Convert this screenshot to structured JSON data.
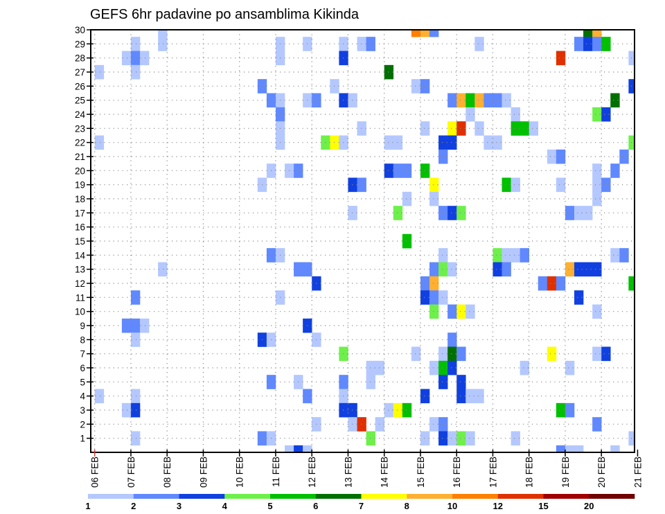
{
  "chart_data": {
    "type": "heatmap",
    "title": "GEFS 6hr padavine po ansamblima Kikinda",
    "xlabel": "",
    "ylabel": "",
    "x_ticks": [
      "06 FEB",
      "07 FEB",
      "08 FEB",
      "09 FEB",
      "10 FEB",
      "11 FEB",
      "12 FEB",
      "13 FEB",
      "14 FEB",
      "15 FEB",
      "16 FEB",
      "17 FEB",
      "18 FEB",
      "19 FEB",
      "20 FEB",
      "21 FEB"
    ],
    "x_step_hours": 6,
    "y_ticks": [
      "1",
      "2",
      "3",
      "4",
      "5",
      "6",
      "7",
      "8",
      "9",
      "10",
      "11",
      "12",
      "13",
      "14",
      "15",
      "16",
      "17",
      "18",
      "19",
      "20",
      "21",
      "22",
      "23",
      "24",
      "25",
      "26",
      "27",
      "28",
      "29",
      "30"
    ],
    "ylim": [
      0,
      30
    ],
    "grid": true,
    "colorbar": {
      "labels": [
        "1",
        "2",
        "3",
        "4",
        "5",
        "6",
        "7",
        "8",
        "10",
        "12",
        "15",
        "20"
      ],
      "colors": [
        "#b4c8ff",
        "#6088ff",
        "#1040e0",
        "#6ef04a",
        "#00c000",
        "#007000",
        "#ffff00",
        "#ffb030",
        "#ff8000",
        "#e03000",
        "#a00000",
        "#700000"
      ],
      "placement": "bottom"
    },
    "cells_format": "[member, 6h step since 06 FEB 00Z, color class index]",
    "cells": [
      [
        30,
        7,
        0
      ],
      [
        30,
        35,
        8
      ],
      [
        30,
        36,
        7
      ],
      [
        30,
        37,
        1
      ],
      [
        30,
        54,
        5
      ],
      [
        30,
        55,
        7
      ],
      [
        29,
        4,
        0
      ],
      [
        29,
        7,
        0
      ],
      [
        29,
        20,
        0
      ],
      [
        29,
        23,
        0
      ],
      [
        29,
        27,
        0
      ],
      [
        29,
        29,
        0
      ],
      [
        29,
        30,
        1
      ],
      [
        29,
        42,
        0
      ],
      [
        29,
        53,
        1
      ],
      [
        29,
        54,
        2
      ],
      [
        29,
        55,
        1
      ],
      [
        29,
        56,
        4
      ],
      [
        28,
        3,
        0
      ],
      [
        28,
        4,
        1
      ],
      [
        28,
        5,
        0
      ],
      [
        28,
        20,
        0
      ],
      [
        28,
        27,
        2
      ],
      [
        28,
        51,
        9
      ],
      [
        28,
        59,
        0
      ],
      [
        27,
        0,
        0
      ],
      [
        27,
        4,
        0
      ],
      [
        27,
        32,
        5
      ],
      [
        26,
        18,
        1
      ],
      [
        26,
        26,
        0
      ],
      [
        26,
        35,
        0
      ],
      [
        26,
        36,
        1
      ],
      [
        26,
        59,
        2
      ],
      [
        25,
        19,
        1
      ],
      [
        25,
        20,
        0
      ],
      [
        25,
        23,
        0
      ],
      [
        25,
        24,
        1
      ],
      [
        25,
        27,
        2
      ],
      [
        25,
        28,
        0
      ],
      [
        25,
        39,
        1
      ],
      [
        25,
        40,
        7
      ],
      [
        25,
        41,
        4
      ],
      [
        25,
        42,
        7
      ],
      [
        25,
        43,
        1
      ],
      [
        25,
        44,
        1
      ],
      [
        25,
        45,
        0
      ],
      [
        25,
        57,
        5
      ],
      [
        24,
        20,
        1
      ],
      [
        24,
        41,
        0
      ],
      [
        24,
        46,
        0
      ],
      [
        24,
        55,
        3
      ],
      [
        24,
        56,
        2
      ],
      [
        23,
        20,
        0
      ],
      [
        23,
        29,
        0
      ],
      [
        23,
        36,
        0
      ],
      [
        23,
        39,
        6
      ],
      [
        23,
        40,
        9
      ],
      [
        23,
        42,
        0
      ],
      [
        23,
        46,
        4
      ],
      [
        23,
        47,
        4
      ],
      [
        23,
        48,
        0
      ],
      [
        22,
        0,
        0
      ],
      [
        22,
        20,
        0
      ],
      [
        22,
        25,
        3
      ],
      [
        22,
        26,
        6
      ],
      [
        22,
        27,
        0
      ],
      [
        22,
        32,
        0
      ],
      [
        22,
        33,
        0
      ],
      [
        22,
        38,
        2
      ],
      [
        22,
        39,
        2
      ],
      [
        22,
        43,
        0
      ],
      [
        22,
        44,
        0
      ],
      [
        22,
        59,
        3
      ],
      [
        21,
        38,
        1
      ],
      [
        21,
        50,
        0
      ],
      [
        21,
        51,
        1
      ],
      [
        21,
        58,
        1
      ],
      [
        20,
        19,
        0
      ],
      [
        20,
        21,
        0
      ],
      [
        20,
        22,
        1
      ],
      [
        20,
        32,
        2
      ],
      [
        20,
        33,
        1
      ],
      [
        20,
        34,
        1
      ],
      [
        20,
        36,
        4
      ],
      [
        20,
        55,
        0
      ],
      [
        20,
        57,
        1
      ],
      [
        19,
        18,
        0
      ],
      [
        19,
        28,
        2
      ],
      [
        19,
        29,
        1
      ],
      [
        19,
        37,
        6
      ],
      [
        19,
        45,
        4
      ],
      [
        19,
        46,
        0
      ],
      [
        19,
        51,
        0
      ],
      [
        19,
        55,
        0
      ],
      [
        19,
        56,
        1
      ],
      [
        18,
        34,
        0
      ],
      [
        18,
        37,
        0
      ],
      [
        18,
        55,
        0
      ],
      [
        17,
        28,
        0
      ],
      [
        17,
        33,
        3
      ],
      [
        17,
        38,
        1
      ],
      [
        17,
        39,
        2
      ],
      [
        17,
        40,
        3
      ],
      [
        17,
        52,
        1
      ],
      [
        17,
        53,
        0
      ],
      [
        17,
        54,
        0
      ],
      [
        15,
        34,
        4
      ],
      [
        14,
        19,
        1
      ],
      [
        14,
        20,
        0
      ],
      [
        14,
        38,
        0
      ],
      [
        14,
        44,
        3
      ],
      [
        14,
        45,
        0
      ],
      [
        14,
        46,
        0
      ],
      [
        14,
        47,
        1
      ],
      [
        14,
        57,
        0
      ],
      [
        14,
        58,
        1
      ],
      [
        13,
        7,
        0
      ],
      [
        13,
        22,
        1
      ],
      [
        13,
        23,
        1
      ],
      [
        13,
        37,
        1
      ],
      [
        13,
        38,
        3
      ],
      [
        13,
        39,
        0
      ],
      [
        13,
        44,
        2
      ],
      [
        13,
        45,
        1
      ],
      [
        13,
        52,
        7
      ],
      [
        13,
        53,
        2
      ],
      [
        13,
        54,
        2
      ],
      [
        13,
        55,
        2
      ],
      [
        12,
        24,
        2
      ],
      [
        12,
        36,
        1
      ],
      [
        12,
        37,
        7
      ],
      [
        12,
        49,
        1
      ],
      [
        12,
        50,
        9
      ],
      [
        12,
        51,
        1
      ],
      [
        12,
        59,
        4
      ],
      [
        11,
        4,
        1
      ],
      [
        11,
        20,
        0
      ],
      [
        11,
        36,
        2
      ],
      [
        11,
        37,
        1
      ],
      [
        11,
        38,
        0
      ],
      [
        11,
        53,
        2
      ],
      [
        10,
        37,
        3
      ],
      [
        10,
        39,
        1
      ],
      [
        10,
        40,
        6
      ],
      [
        10,
        41,
        0
      ],
      [
        10,
        55,
        0
      ],
      [
        9,
        3,
        1
      ],
      [
        9,
        4,
        1
      ],
      [
        9,
        5,
        0
      ],
      [
        9,
        23,
        2
      ],
      [
        8,
        4,
        0
      ],
      [
        8,
        18,
        2
      ],
      [
        8,
        19,
        0
      ],
      [
        8,
        24,
        0
      ],
      [
        8,
        39,
        1
      ],
      [
        7,
        27,
        3
      ],
      [
        7,
        35,
        0
      ],
      [
        7,
        38,
        0
      ],
      [
        7,
        39,
        5
      ],
      [
        7,
        40,
        1
      ],
      [
        7,
        50,
        6
      ],
      [
        7,
        55,
        0
      ],
      [
        7,
        56,
        2
      ],
      [
        6,
        30,
        0
      ],
      [
        6,
        31,
        0
      ],
      [
        6,
        37,
        0
      ],
      [
        6,
        38,
        4
      ],
      [
        6,
        39,
        2
      ],
      [
        6,
        47,
        0
      ],
      [
        6,
        52,
        0
      ],
      [
        5,
        19,
        1
      ],
      [
        5,
        22,
        0
      ],
      [
        5,
        27,
        1
      ],
      [
        5,
        30,
        0
      ],
      [
        5,
        38,
        2
      ],
      [
        5,
        40,
        2
      ],
      [
        4,
        0,
        0
      ],
      [
        4,
        4,
        0
      ],
      [
        4,
        23,
        1
      ],
      [
        4,
        27,
        0
      ],
      [
        4,
        36,
        2
      ],
      [
        4,
        40,
        2
      ],
      [
        4,
        41,
        0
      ],
      [
        4,
        42,
        0
      ],
      [
        3,
        3,
        0
      ],
      [
        3,
        4,
        2
      ],
      [
        3,
        27,
        2
      ],
      [
        3,
        28,
        2
      ],
      [
        3,
        32,
        0
      ],
      [
        3,
        33,
        6
      ],
      [
        3,
        34,
        4
      ],
      [
        3,
        51,
        4
      ],
      [
        3,
        52,
        1
      ],
      [
        2,
        24,
        0
      ],
      [
        2,
        28,
        0
      ],
      [
        2,
        29,
        9
      ],
      [
        2,
        31,
        0
      ],
      [
        2,
        37,
        0
      ],
      [
        2,
        38,
        1
      ],
      [
        2,
        55,
        1
      ],
      [
        1,
        4,
        0
      ],
      [
        1,
        18,
        1
      ],
      [
        1,
        19,
        0
      ],
      [
        1,
        30,
        3
      ],
      [
        1,
        36,
        0
      ],
      [
        1,
        38,
        2
      ],
      [
        1,
        39,
        0
      ],
      [
        1,
        40,
        3
      ],
      [
        1,
        41,
        0
      ],
      [
        1,
        46,
        0
      ],
      [
        1,
        59,
        0
      ],
      [
        0,
        21,
        0
      ],
      [
        0,
        22,
        2
      ],
      [
        0,
        23,
        0
      ],
      [
        0,
        51,
        1
      ],
      [
        0,
        52,
        0
      ],
      [
        0,
        53,
        0
      ],
      [
        0,
        57,
        0
      ]
    ]
  }
}
